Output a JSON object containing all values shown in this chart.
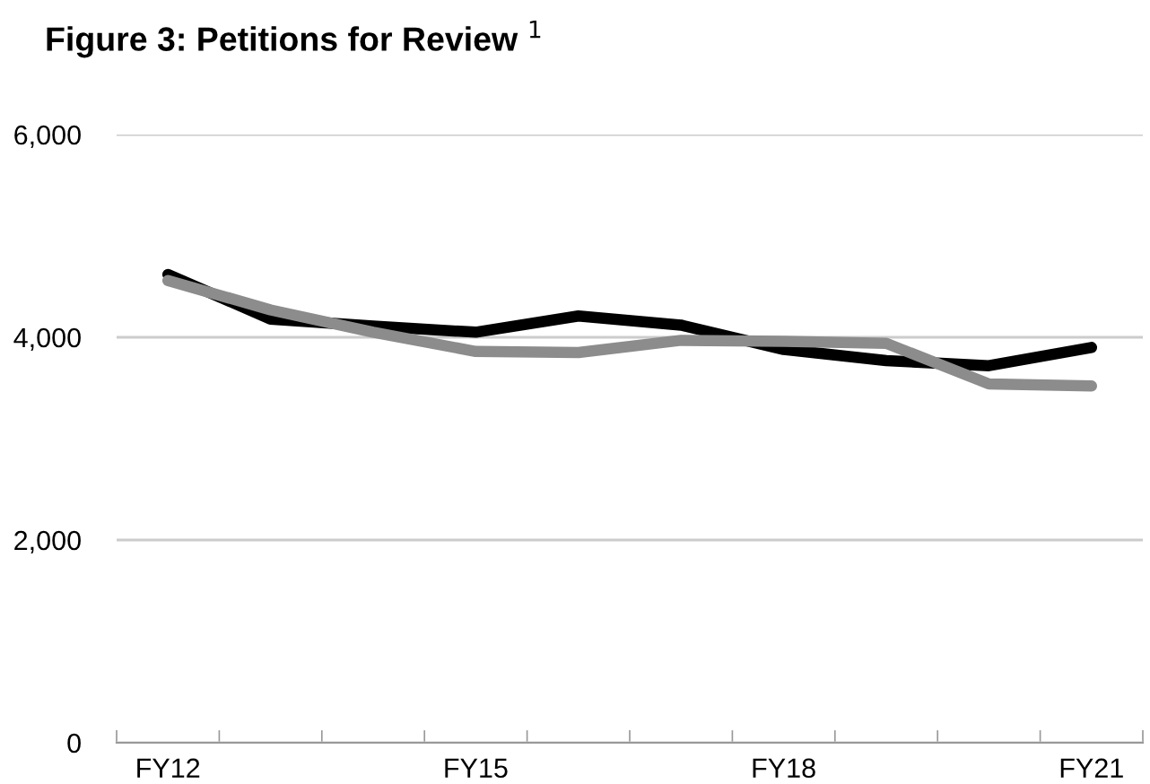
{
  "chart_data": {
    "type": "line",
    "title": "Figure 3: Petitions for Review $^{1}$",
    "categories": [
      "FY12",
      null,
      null,
      "FY15",
      null,
      null,
      "FY18",
      null,
      null,
      "FY21"
    ],
    "series": [
      {
        "color": "#000000",
        "values": [
          4620,
          4180,
          4110,
          4050,
          4210,
          4120,
          3880,
          3770,
          3720,
          3900
        ]
      },
      {
        "color": "#8c8c8c",
        "values": [
          4560,
          4270,
          4050,
          3860,
          3850,
          3970,
          3960,
          3940,
          3540,
          3520
        ]
      }
    ],
    "ylim": [
      0,
      6000
    ],
    "yticks": [
      {
        "value": 0,
        "label": "0"
      },
      {
        "value": 2000,
        "label": "2,000"
      },
      {
        "value": 4000,
        "label": "4,000"
      },
      {
        "value": 6000,
        "label": "6,000"
      }
    ],
    "grid": "y",
    "marker": "none",
    "line_style": "solid"
  }
}
